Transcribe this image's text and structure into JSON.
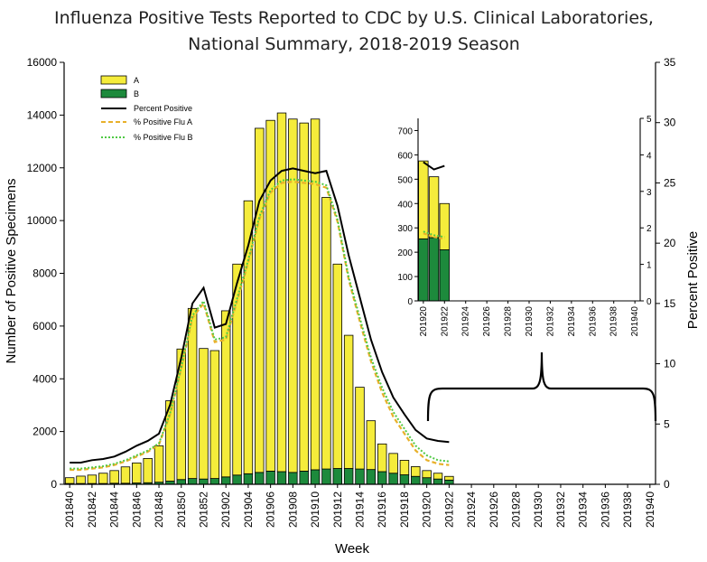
{
  "chart_data": [
    {
      "type": "bar",
      "title": "Influenza Positive Tests Reported to CDC by U.S. Clinical Laboratories,",
      "subtitle": "National Summary, 2018-2019 Season",
      "xlabel": "Week",
      "ylabel": "Number of Positive Specimens",
      "y2label": "Percent Positive",
      "ylim": [
        0,
        16000
      ],
      "y2lim": [
        0,
        35
      ],
      "yticks": [
        "0",
        "2000",
        "4000",
        "6000",
        "8000",
        "10000",
        "12000",
        "14000",
        "16000"
      ],
      "y2ticks": [
        "0",
        "5",
        "10",
        "15",
        "20",
        "25",
        "30",
        "35"
      ],
      "xticks": [
        "201840",
        "201842",
        "201844",
        "201846",
        "201848",
        "201850",
        "201852",
        "201902",
        "201904",
        "201906",
        "201908",
        "201910",
        "201912",
        "201914",
        "201916",
        "201918",
        "201920",
        "201922",
        "201924",
        "201926",
        "201928",
        "201930",
        "201932",
        "201934",
        "201936",
        "201938",
        "201940"
      ],
      "stacked": true,
      "legend_position": "top-left",
      "legend": [
        "A",
        "B",
        "Percent Positive",
        "% Positive Flu A",
        "% Positive Flu B"
      ],
      "colors": {
        "A": "#f5ec3b",
        "B": "#1d8a3c",
        "percent": "#000000",
        "fluA": "#e8b02a",
        "fluB": "#4fc943"
      },
      "series": [
        {
          "name": "A",
          "values": [
            220,
            280,
            320,
            390,
            480,
            620,
            760,
            920,
            1380,
            3050,
            4950,
            6450,
            4950,
            4850,
            6300,
            8000,
            10350,
            13050,
            13300,
            13600,
            13400,
            13200,
            13300,
            10300,
            7750,
            5050,
            3100,
            1850,
            1050,
            750,
            550,
            370,
            270,
            220,
            140
          ]
        },
        {
          "name": "B",
          "values": [
            30,
            30,
            30,
            30,
            40,
            40,
            50,
            60,
            80,
            120,
            180,
            220,
            200,
            220,
            280,
            350,
            400,
            450,
            500,
            480,
            450,
            500,
            550,
            580,
            600,
            600,
            580,
            560,
            480,
            420,
            360,
            300,
            250,
            200,
            160
          ]
        },
        {
          "name": "Percent Positive",
          "values": [
            1.8,
            1.8,
            2.0,
            2.1,
            2.3,
            2.7,
            3.2,
            3.6,
            4.2,
            6.6,
            10.5,
            15.0,
            16.3,
            13.0,
            13.3,
            16.7,
            19.8,
            23.5,
            25.2,
            26.0,
            26.2,
            26.0,
            25.8,
            26.0,
            23.1,
            19.0,
            15.5,
            12.0,
            9.3,
            7.2,
            5.8,
            4.5,
            3.8,
            3.6,
            3.5
          ]
        },
        {
          "name": "% Positive Flu A",
          "values": [
            1.2,
            1.2,
            1.3,
            1.4,
            1.6,
            1.9,
            2.3,
            2.7,
            3.3,
            5.8,
            9.6,
            13.8,
            15.0,
            11.8,
            12.0,
            15.2,
            18.4,
            22.0,
            24.2,
            25.0,
            25.1,
            25.0,
            24.9,
            24.6,
            21.8,
            17.0,
            13.5,
            10.2,
            7.6,
            5.6,
            4.2,
            2.8,
            2.0,
            1.7,
            1.6
          ]
        },
        {
          "name": "% Positive Flu B",
          "values": [
            1.3,
            1.3,
            1.4,
            1.5,
            1.7,
            2.0,
            2.4,
            2.8,
            3.4,
            5.9,
            9.7,
            14.0,
            15.2,
            12.0,
            12.2,
            15.4,
            18.6,
            22.2,
            24.4,
            25.2,
            25.3,
            25.2,
            25.1,
            24.8,
            22.0,
            17.2,
            13.8,
            10.5,
            8.0,
            6.0,
            4.6,
            3.2,
            2.4,
            2.0,
            1.9
          ]
        }
      ]
    },
    {
      "type": "bar",
      "title": "",
      "ylim": [
        0,
        750
      ],
      "y2lim": [
        0,
        5
      ],
      "yticks": [
        "0",
        "100",
        "200",
        "300",
        "400",
        "500",
        "600",
        "700"
      ],
      "y2ticks": [
        "0",
        "1",
        "2",
        "3",
        "4",
        "5"
      ],
      "xticks": [
        "201920",
        "201922",
        "201924",
        "201926",
        "201928",
        "201930",
        "201932",
        "201934",
        "201936",
        "201938",
        "201940"
      ],
      "stacked": true,
      "series": [
        {
          "name": "A",
          "values": [
            320,
            250,
            190
          ]
        },
        {
          "name": "B",
          "values": [
            255,
            260,
            210
          ]
        },
        {
          "name": "Percent Positive",
          "values": [
            3.8,
            3.6,
            3.7
          ]
        },
        {
          "name": "% Positive Flu A",
          "values": [
            1.85,
            1.75,
            1.7
          ]
        },
        {
          "name": "% Positive Flu B",
          "values": [
            1.9,
            1.8,
            1.75
          ]
        }
      ]
    }
  ]
}
